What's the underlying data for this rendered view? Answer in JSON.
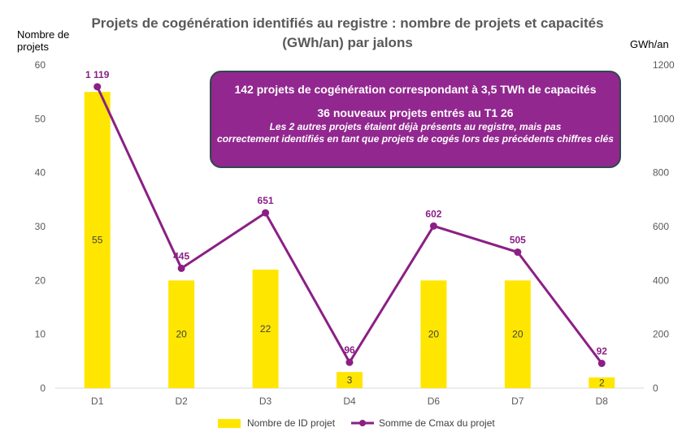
{
  "chart_data": {
    "type": "bar",
    "title_line1": "Projets de cogénération identifiés au registre : nombre de projets et capacités",
    "title_line2": "(GWh/an) par jalons",
    "categories": [
      "D1",
      "D2",
      "D3",
      "D4",
      "D6",
      "D7",
      "D8"
    ],
    "series": [
      {
        "name": "Nombre de ID projet",
        "type": "bar",
        "axis": "left",
        "values": [
          55,
          20,
          22,
          3,
          20,
          20,
          2
        ],
        "labels": [
          "55",
          "20",
          "22",
          "3",
          "20",
          "20",
          "2"
        ],
        "color": "#ffe600"
      },
      {
        "name": "Somme de Cmax du projet",
        "type": "line",
        "axis": "right",
        "values": [
          1119,
          445,
          651,
          96,
          602,
          505,
          92
        ],
        "labels": [
          "1 119",
          "445",
          "651",
          "96",
          "602",
          "505",
          "92"
        ],
        "color": "#8b1f85"
      }
    ],
    "ylabel_left": "Nombre de projets",
    "ylabel_right": "GWh/an",
    "ylim_left": [
      0,
      60
    ],
    "ylim_right": [
      0,
      1200
    ],
    "yticks_left": [
      "0",
      "10",
      "20",
      "30",
      "40",
      "50",
      "60"
    ],
    "yticks_right": [
      "0",
      "200",
      "400",
      "600",
      "800",
      "1000",
      "1200"
    ],
    "grid": false,
    "legend_position": "bottom"
  },
  "annotation": {
    "line1": "142 projets de cogénération correspondant à  3,5 TWh de capacités",
    "line2": "36 nouveaux projets entrés au T1 26",
    "line3": "Les 2 autres projets étaient déjà présents au registre, mais pas",
    "line4": "correctement identifiés en tant que projets de cogés lors des précédents chiffres clés",
    "background_color": "#92278f"
  },
  "colors": {
    "bar": "#ffe600",
    "line": "#8b1f85",
    "title": "#595959"
  }
}
